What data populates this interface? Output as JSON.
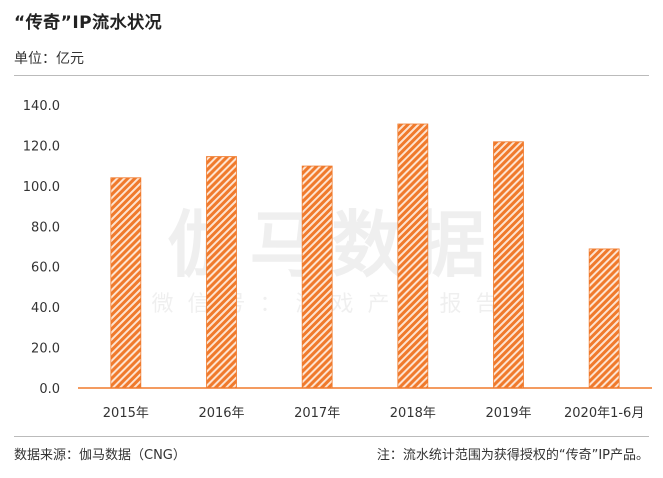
{
  "header": {
    "title": "“传奇”IP流水状况",
    "unit": "单位：亿元"
  },
  "footer": {
    "source": "数据来源：伽马数据（CNG）",
    "note": "注：流水统计范围为获得授权的“传奇”IP产品。"
  },
  "watermark": {
    "main": "伽马数据",
    "sub": "微信号：游戏产业报告"
  },
  "colors": {
    "bar": "#f07a2c",
    "bar_stripe_bg": "#fde3d0",
    "axis": "#f07a2c"
  },
  "chart_data": {
    "type": "bar",
    "categories": [
      "2015年",
      "2016年",
      "2017年",
      "2018年",
      "2019年",
      "2020年1-6月"
    ],
    "values": [
      104.0,
      114.5,
      109.8,
      130.6,
      121.8,
      68.8
    ],
    "ylim": [
      0,
      140
    ],
    "yticks": [
      "0.0",
      "20.0",
      "40.0",
      "60.0",
      "80.0",
      "100.0",
      "120.0",
      "140.0"
    ],
    "grid": false,
    "legend": "none"
  }
}
